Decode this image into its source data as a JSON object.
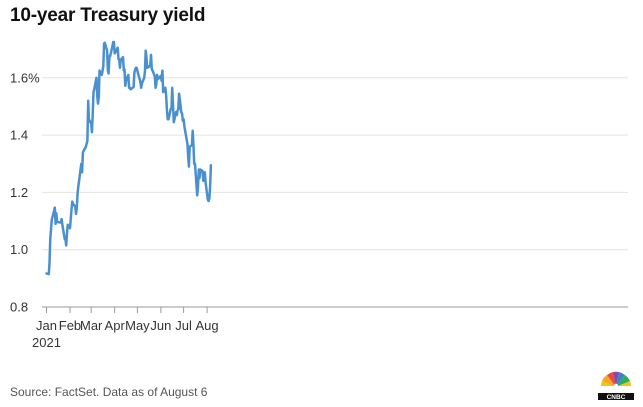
{
  "chart_data": {
    "type": "line",
    "title": "10-year Treasury yield",
    "xlabel": "",
    "ylabel": "",
    "source": "Source: FactSet. Data as of August 6",
    "year_label": "2021",
    "x_range": [
      "2021-01-01",
      "2021-08-09"
    ],
    "ylim": [
      0.8,
      1.8
    ],
    "grid": true,
    "y_ticks": [
      {
        "value": 0.8,
        "label": "0.8"
      },
      {
        "value": 1.0,
        "label": "1.0"
      },
      {
        "value": 1.2,
        "label": "1.2"
      },
      {
        "value": 1.4,
        "label": "1.4"
      },
      {
        "value": 1.6,
        "label": "1.6%"
      }
    ],
    "x_ticks": [
      {
        "date": "2021-01-01",
        "label": "Jan"
      },
      {
        "date": "2021-02-01",
        "label": "Feb"
      },
      {
        "date": "2021-03-01",
        "label": "Mar"
      },
      {
        "date": "2021-04-01",
        "label": "Apr"
      },
      {
        "date": "2021-05-01",
        "label": "May"
      },
      {
        "date": "2021-06-01",
        "label": "Jun"
      },
      {
        "date": "2021-07-01",
        "label": "Jul"
      },
      {
        "date": "2021-08-01",
        "label": "Aug"
      }
    ],
    "series": [
      {
        "color": "#4a90cf",
        "points": [
          [
            "2021-01-01",
            0.917
          ],
          [
            "2021-01-04",
            0.915
          ],
          [
            "2021-01-05",
            0.955
          ],
          [
            "2021-01-06",
            1.04
          ],
          [
            "2021-01-07",
            1.07
          ],
          [
            "2021-01-08",
            1.105
          ],
          [
            "2021-01-11",
            1.135
          ],
          [
            "2021-01-12",
            1.147
          ],
          [
            "2021-01-13",
            1.09
          ],
          [
            "2021-01-14",
            1.127
          ],
          [
            "2021-01-15",
            1.097
          ],
          [
            "2021-01-19",
            1.095
          ],
          [
            "2021-01-20",
            1.095
          ],
          [
            "2021-01-21",
            1.107
          ],
          [
            "2021-01-22",
            1.087
          ],
          [
            "2021-01-25",
            1.037
          ],
          [
            "2021-01-26",
            1.037
          ],
          [
            "2021-01-27",
            1.015
          ],
          [
            "2021-01-28",
            1.057
          ],
          [
            "2021-01-29",
            1.087
          ],
          [
            "2021-02-01",
            1.075
          ],
          [
            "2021-02-02",
            1.105
          ],
          [
            "2021-02-03",
            1.14
          ],
          [
            "2021-02-04",
            1.168
          ],
          [
            "2021-02-05",
            1.16
          ],
          [
            "2021-02-08",
            1.15
          ],
          [
            "2021-02-09",
            1.125
          ],
          [
            "2021-02-10",
            1.145
          ],
          [
            "2021-02-11",
            1.2
          ],
          [
            "2021-02-12",
            1.22
          ],
          [
            "2021-02-16",
            1.3
          ],
          [
            "2021-02-17",
            1.27
          ],
          [
            "2021-02-18",
            1.34
          ],
          [
            "2021-02-19",
            1.345
          ],
          [
            "2021-02-22",
            1.36
          ],
          [
            "2021-02-23",
            1.37
          ],
          [
            "2021-02-24",
            1.38
          ],
          [
            "2021-02-25",
            1.52
          ],
          [
            "2021-02-26",
            1.455
          ],
          [
            "2021-03-01",
            1.44
          ],
          [
            "2021-03-02",
            1.41
          ],
          [
            "2021-03-03",
            1.47
          ],
          [
            "2021-03-04",
            1.55
          ],
          [
            "2021-03-05",
            1.56
          ],
          [
            "2021-03-08",
            1.6
          ],
          [
            "2021-03-09",
            1.535
          ],
          [
            "2021-03-10",
            1.51
          ],
          [
            "2021-03-11",
            1.535
          ],
          [
            "2021-03-12",
            1.625
          ],
          [
            "2021-03-15",
            1.61
          ],
          [
            "2021-03-16",
            1.625
          ],
          [
            "2021-03-17",
            1.64
          ],
          [
            "2021-03-18",
            1.72
          ],
          [
            "2021-03-19",
            1.722
          ],
          [
            "2021-03-22",
            1.695
          ],
          [
            "2021-03-23",
            1.625
          ],
          [
            "2021-03-24",
            1.615
          ],
          [
            "2021-03-25",
            1.675
          ],
          [
            "2021-03-26",
            1.675
          ],
          [
            "2021-03-29",
            1.71
          ],
          [
            "2021-03-30",
            1.725
          ],
          [
            "2021-03-31",
            1.725
          ],
          [
            "2021-04-01",
            1.685
          ],
          [
            "2021-04-05",
            1.705
          ],
          [
            "2021-04-06",
            1.665
          ],
          [
            "2021-04-07",
            1.665
          ],
          [
            "2021-04-08",
            1.635
          ],
          [
            "2021-04-09",
            1.662
          ],
          [
            "2021-04-12",
            1.672
          ],
          [
            "2021-04-13",
            1.625
          ],
          [
            "2021-04-14",
            1.63
          ],
          [
            "2021-04-15",
            1.572
          ],
          [
            "2021-04-16",
            1.59
          ],
          [
            "2021-04-19",
            1.61
          ],
          [
            "2021-04-20",
            1.565
          ],
          [
            "2021-04-21",
            1.565
          ],
          [
            "2021-04-22",
            1.56
          ],
          [
            "2021-04-23",
            1.562
          ],
          [
            "2021-04-26",
            1.568
          ],
          [
            "2021-04-27",
            1.618
          ],
          [
            "2021-04-28",
            1.628
          ],
          [
            "2021-04-29",
            1.635
          ],
          [
            "2021-04-30",
            1.635
          ],
          [
            "2021-05-03",
            1.605
          ],
          [
            "2021-05-04",
            1.595
          ],
          [
            "2021-05-05",
            1.585
          ],
          [
            "2021-05-06",
            1.565
          ],
          [
            "2021-05-07",
            1.58
          ],
          [
            "2021-05-10",
            1.6
          ],
          [
            "2021-05-11",
            1.625
          ],
          [
            "2021-05-12",
            1.695
          ],
          [
            "2021-05-13",
            1.67
          ],
          [
            "2021-05-14",
            1.635
          ],
          [
            "2021-05-17",
            1.64
          ],
          [
            "2021-05-18",
            1.645
          ],
          [
            "2021-05-19",
            1.68
          ],
          [
            "2021-05-20",
            1.63
          ],
          [
            "2021-05-21",
            1.625
          ],
          [
            "2021-05-24",
            1.605
          ],
          [
            "2021-05-25",
            1.565
          ],
          [
            "2021-05-26",
            1.578
          ],
          [
            "2021-05-27",
            1.61
          ],
          [
            "2021-05-28",
            1.595
          ],
          [
            "2021-06-01",
            1.607
          ],
          [
            "2021-06-02",
            1.59
          ],
          [
            "2021-06-03",
            1.625
          ],
          [
            "2021-06-04",
            1.55
          ],
          [
            "2021-06-07",
            1.565
          ],
          [
            "2021-06-08",
            1.535
          ],
          [
            "2021-06-09",
            1.49
          ],
          [
            "2021-06-10",
            1.455
          ],
          [
            "2021-06-11",
            1.455
          ],
          [
            "2021-06-14",
            1.49
          ],
          [
            "2021-06-15",
            1.495
          ],
          [
            "2021-06-16",
            1.565
          ],
          [
            "2021-06-17",
            1.505
          ],
          [
            "2021-06-18",
            1.445
          ],
          [
            "2021-06-21",
            1.48
          ],
          [
            "2021-06-22",
            1.47
          ],
          [
            "2021-06-23",
            1.485
          ],
          [
            "2021-06-24",
            1.49
          ],
          [
            "2021-06-25",
            1.545
          ],
          [
            "2021-06-28",
            1.48
          ],
          [
            "2021-06-29",
            1.475
          ],
          [
            "2021-06-30",
            1.45
          ],
          [
            "2021-07-01",
            1.455
          ],
          [
            "2021-07-02",
            1.43
          ],
          [
            "2021-07-06",
            1.37
          ],
          [
            "2021-07-07",
            1.325
          ],
          [
            "2021-07-08",
            1.29
          ],
          [
            "2021-07-09",
            1.36
          ],
          [
            "2021-07-12",
            1.365
          ],
          [
            "2021-07-13",
            1.415
          ],
          [
            "2021-07-14",
            1.36
          ],
          [
            "2021-07-15",
            1.3
          ],
          [
            "2021-07-16",
            1.3
          ],
          [
            "2021-07-19",
            1.19
          ],
          [
            "2021-07-20",
            1.22
          ],
          [
            "2021-07-21",
            1.28
          ],
          [
            "2021-07-22",
            1.25
          ],
          [
            "2021-07-23",
            1.28
          ],
          [
            "2021-07-26",
            1.275
          ],
          [
            "2021-07-27",
            1.24
          ],
          [
            "2021-07-28",
            1.265
          ],
          [
            "2021-07-29",
            1.27
          ],
          [
            "2021-07-30",
            1.235
          ],
          [
            "2021-08-02",
            1.175
          ],
          [
            "2021-08-03",
            1.17
          ],
          [
            "2021-08-04",
            1.18
          ],
          [
            "2021-08-05",
            1.22
          ],
          [
            "2021-08-06",
            1.295
          ]
        ]
      }
    ]
  }
}
